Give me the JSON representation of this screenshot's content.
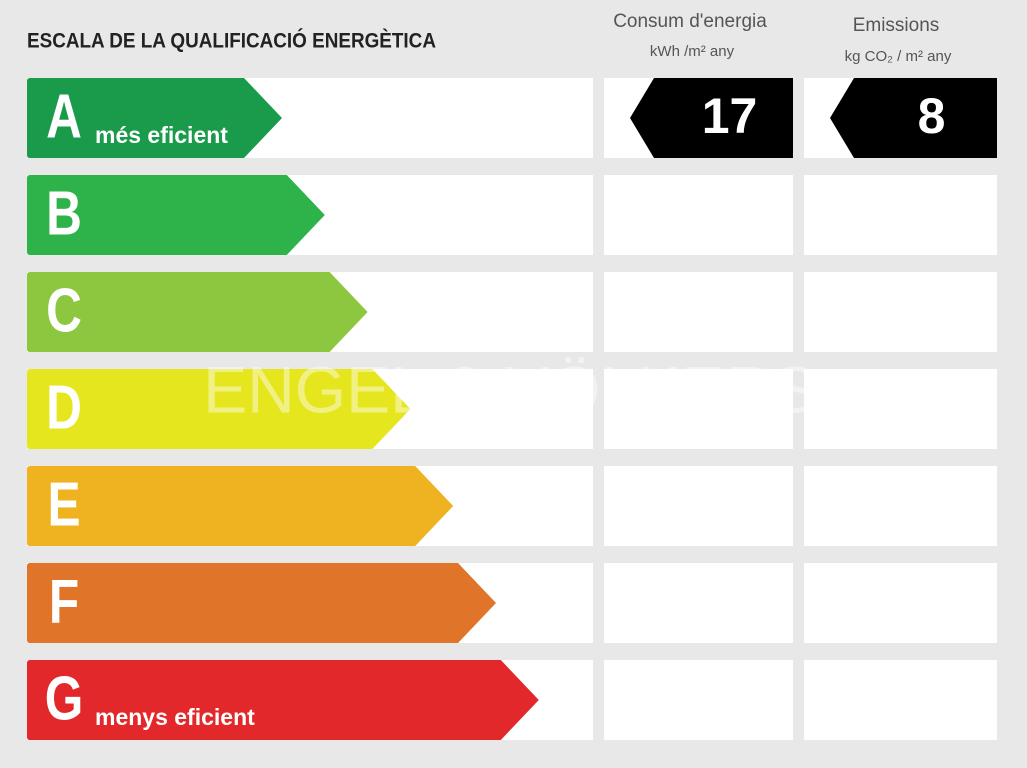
{
  "title": "ESCALA DE LA QUALIFICACIÓ ENERGÈTICA",
  "columns": [
    {
      "title": "Consum d'energia",
      "unit": "kWh /m² any"
    },
    {
      "title": "Emissions",
      "unit": "kg CO₂ / m² any"
    }
  ],
  "rows": [
    {
      "letter": "A",
      "label": "més eficient",
      "color": "#1a9a4b",
      "consum": 17,
      "emissions": 8
    },
    {
      "letter": "B",
      "color": "#2db34a"
    },
    {
      "letter": "C",
      "color": "#8dc63f"
    },
    {
      "letter": "D",
      "color": "#e6e61e"
    },
    {
      "letter": "E",
      "color": "#efb322"
    },
    {
      "letter": "F",
      "color": "#e07428"
    },
    {
      "letter": "G",
      "label": "menys eficient",
      "color": "#e3282b"
    }
  ],
  "watermark": "ENGEL & VÖLKERS"
}
